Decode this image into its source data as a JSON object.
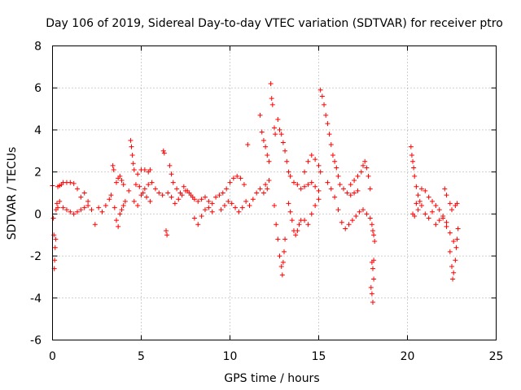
{
  "chart_data": {
    "type": "scatter",
    "title": "Day 106 of 2019, Sidereal Day-to-day VTEC variation (SDTVAR) for receiver ptro",
    "xlabel": "GPS time / hours",
    "ylabel": "SDTVAR / TECUs",
    "xlim": [
      0,
      25
    ],
    "ylim": [
      -6,
      8
    ],
    "xticks": [
      "0",
      "5",
      "10",
      "15",
      "20",
      "25"
    ],
    "yticks": [
      "-6",
      "-4",
      "-2",
      "0",
      "2",
      "4",
      "6",
      "8"
    ],
    "grid": true,
    "marker": "+",
    "color": "#ff0000",
    "series": [
      {
        "name": "SDTVAR",
        "points": [
          [
            0.0,
            1.35
          ],
          [
            0.05,
            -0.2
          ],
          [
            0.08,
            -1.0
          ],
          [
            0.1,
            -2.6
          ],
          [
            0.12,
            -2.2
          ],
          [
            0.15,
            -1.6
          ],
          [
            0.18,
            -1.2
          ],
          [
            0.2,
            0.2
          ],
          [
            0.25,
            0.5
          ],
          [
            0.3,
            1.3
          ],
          [
            0.4,
            1.35
          ],
          [
            0.5,
            1.4
          ],
          [
            0.6,
            1.5
          ],
          [
            0.8,
            1.5
          ],
          [
            1.0,
            1.5
          ],
          [
            1.2,
            1.45
          ],
          [
            1.4,
            1.2
          ],
          [
            0.3,
            0.3
          ],
          [
            0.4,
            0.6
          ],
          [
            0.6,
            0.3
          ],
          [
            0.8,
            0.2
          ],
          [
            1.0,
            0.1
          ],
          [
            1.2,
            0.0
          ],
          [
            1.4,
            0.1
          ],
          [
            1.6,
            0.2
          ],
          [
            1.8,
            0.3
          ],
          [
            2.0,
            0.4
          ],
          [
            1.6,
            0.8
          ],
          [
            1.8,
            1.0
          ],
          [
            2.0,
            0.6
          ],
          [
            2.2,
            0.2
          ],
          [
            2.4,
            -0.5
          ],
          [
            2.6,
            0.3
          ],
          [
            2.8,
            0.1
          ],
          [
            3.0,
            0.4
          ],
          [
            3.2,
            0.7
          ],
          [
            3.3,
            0.9
          ],
          [
            3.4,
            2.3
          ],
          [
            3.45,
            2.1
          ],
          [
            3.5,
            0.3
          ],
          [
            3.6,
            -0.3
          ],
          [
            3.7,
            -0.6
          ],
          [
            3.8,
            0.0
          ],
          [
            3.9,
            0.2
          ],
          [
            4.0,
            0.4
          ],
          [
            4.1,
            0.6
          ],
          [
            3.6,
            1.5
          ],
          [
            3.7,
            1.7
          ],
          [
            3.8,
            1.8
          ],
          [
            3.9,
            1.6
          ],
          [
            4.0,
            1.4
          ],
          [
            4.3,
            1.1
          ],
          [
            4.4,
            3.5
          ],
          [
            4.45,
            3.2
          ],
          [
            4.5,
            2.8
          ],
          [
            4.55,
            2.4
          ],
          [
            4.6,
            2.1
          ],
          [
            4.8,
            1.9
          ],
          [
            5.0,
            2.1
          ],
          [
            5.2,
            2.1
          ],
          [
            5.4,
            2.0
          ],
          [
            5.5,
            2.1
          ],
          [
            4.6,
            0.6
          ],
          [
            4.8,
            0.4
          ],
          [
            5.0,
            0.9
          ],
          [
            5.2,
            1.2
          ],
          [
            5.4,
            1.4
          ],
          [
            5.6,
            1.5
          ],
          [
            5.8,
            1.2
          ],
          [
            6.0,
            1.0
          ],
          [
            6.2,
            0.9
          ],
          [
            4.7,
            1.4
          ],
          [
            4.9,
            1.3
          ],
          [
            5.1,
            1.0
          ],
          [
            5.3,
            0.8
          ],
          [
            5.5,
            0.6
          ],
          [
            6.25,
            3.0
          ],
          [
            6.3,
            2.9
          ],
          [
            6.4,
            -0.8
          ],
          [
            6.45,
            -1.0
          ],
          [
            6.6,
            2.3
          ],
          [
            6.7,
            1.9
          ],
          [
            6.8,
            1.5
          ],
          [
            7.0,
            1.2
          ],
          [
            7.2,
            1.0
          ],
          [
            6.5,
            1.0
          ],
          [
            6.7,
            0.8
          ],
          [
            6.9,
            0.5
          ],
          [
            7.1,
            0.7
          ],
          [
            7.3,
            0.9
          ],
          [
            7.5,
            1.1
          ],
          [
            7.7,
            1.0
          ],
          [
            7.9,
            0.8
          ],
          [
            7.4,
            1.3
          ],
          [
            7.6,
            1.1
          ],
          [
            7.8,
            0.9
          ],
          [
            8.0,
            0.7
          ],
          [
            8.2,
            0.6
          ],
          [
            8.4,
            0.7
          ],
          [
            8.6,
            0.8
          ],
          [
            8.8,
            0.6
          ],
          [
            9.0,
            0.5
          ],
          [
            8.0,
            -0.2
          ],
          [
            8.2,
            -0.5
          ],
          [
            8.4,
            -0.1
          ],
          [
            8.6,
            0.2
          ],
          [
            8.8,
            0.3
          ],
          [
            9.0,
            0.1
          ],
          [
            9.2,
            0.8
          ],
          [
            9.4,
            0.9
          ],
          [
            9.6,
            1.0
          ],
          [
            9.8,
            1.2
          ],
          [
            10.0,
            1.5
          ],
          [
            10.2,
            1.7
          ],
          [
            10.4,
            1.8
          ],
          [
            10.6,
            1.7
          ],
          [
            10.8,
            1.4
          ],
          [
            9.5,
            0.2
          ],
          [
            9.7,
            0.4
          ],
          [
            9.9,
            0.6
          ],
          [
            10.1,
            0.5
          ],
          [
            10.3,
            0.3
          ],
          [
            10.5,
            0.1
          ],
          [
            10.7,
            0.3
          ],
          [
            10.9,
            0.6
          ],
          [
            11.0,
            3.3
          ],
          [
            11.1,
            0.4
          ],
          [
            11.3,
            0.7
          ],
          [
            11.5,
            1.0
          ],
          [
            11.7,
            1.2
          ],
          [
            11.9,
            1.0
          ],
          [
            12.0,
            1.4
          ],
          [
            11.7,
            4.7
          ],
          [
            11.8,
            3.9
          ],
          [
            11.9,
            3.5
          ],
          [
            12.0,
            3.2
          ],
          [
            12.1,
            2.8
          ],
          [
            12.2,
            2.5
          ],
          [
            12.1,
            1.2
          ],
          [
            12.2,
            1.6
          ],
          [
            12.3,
            6.2
          ],
          [
            12.35,
            5.5
          ],
          [
            12.4,
            5.2
          ],
          [
            12.5,
            4.1
          ],
          [
            12.55,
            3.8
          ],
          [
            12.5,
            0.4
          ],
          [
            12.6,
            -0.5
          ],
          [
            12.7,
            -1.2
          ],
          [
            12.8,
            -2.0
          ],
          [
            12.9,
            -2.5
          ],
          [
            12.95,
            -2.9
          ],
          [
            13.0,
            -2.3
          ],
          [
            13.05,
            -1.8
          ],
          [
            13.1,
            -1.2
          ],
          [
            12.7,
            4.5
          ],
          [
            12.8,
            4.0
          ],
          [
            12.9,
            3.8
          ],
          [
            13.0,
            3.4
          ],
          [
            13.1,
            3.0
          ],
          [
            13.2,
            2.5
          ],
          [
            13.3,
            2.0
          ],
          [
            13.4,
            1.8
          ],
          [
            13.3,
            0.5
          ],
          [
            13.4,
            0.1
          ],
          [
            13.5,
            -0.3
          ],
          [
            13.6,
            -0.8
          ],
          [
            13.7,
            -1.0
          ],
          [
            13.8,
            -0.8
          ],
          [
            13.9,
            -0.5
          ],
          [
            14.0,
            -0.3
          ],
          [
            13.6,
            1.5
          ],
          [
            13.8,
            1.4
          ],
          [
            14.0,
            1.2
          ],
          [
            14.2,
            1.3
          ],
          [
            14.4,
            1.4
          ],
          [
            14.6,
            1.5
          ],
          [
            14.8,
            1.3
          ],
          [
            15.0,
            1.1
          ],
          [
            14.2,
            2.0
          ],
          [
            14.4,
            2.5
          ],
          [
            14.6,
            2.8
          ],
          [
            14.8,
            2.6
          ],
          [
            15.0,
            2.3
          ],
          [
            15.1,
            2.0
          ],
          [
            14.2,
            -0.3
          ],
          [
            14.4,
            -0.5
          ],
          [
            14.6,
            0.0
          ],
          [
            14.8,
            0.4
          ],
          [
            15.0,
            0.7
          ],
          [
            15.1,
            5.9
          ],
          [
            15.2,
            5.6
          ],
          [
            15.3,
            5.2
          ],
          [
            15.4,
            4.7
          ],
          [
            15.5,
            4.3
          ],
          [
            15.6,
            3.8
          ],
          [
            15.7,
            3.3
          ],
          [
            15.8,
            2.8
          ],
          [
            15.9,
            2.5
          ],
          [
            16.0,
            2.2
          ],
          [
            16.1,
            1.8
          ],
          [
            16.2,
            1.4
          ],
          [
            16.4,
            1.2
          ],
          [
            16.6,
            1.0
          ],
          [
            16.8,
            0.9
          ],
          [
            17.0,
            1.0
          ],
          [
            17.2,
            1.1
          ],
          [
            15.5,
            1.5
          ],
          [
            15.7,
            1.2
          ],
          [
            15.9,
            0.8
          ],
          [
            16.1,
            0.2
          ],
          [
            16.3,
            -0.4
          ],
          [
            16.5,
            -0.7
          ],
          [
            16.7,
            -0.5
          ],
          [
            16.9,
            -0.3
          ],
          [
            17.1,
            -0.1
          ],
          [
            17.3,
            0.1
          ],
          [
            17.5,
            0.2
          ],
          [
            17.7,
            0.0
          ],
          [
            16.8,
            1.4
          ],
          [
            17.0,
            1.6
          ],
          [
            17.2,
            1.8
          ],
          [
            17.4,
            2.0
          ],
          [
            17.5,
            2.3
          ],
          [
            17.6,
            2.5
          ],
          [
            17.7,
            2.2
          ],
          [
            17.8,
            1.8
          ],
          [
            17.9,
            1.2
          ],
          [
            17.9,
            -0.2
          ],
          [
            18.0,
            -0.5
          ],
          [
            18.05,
            -0.8
          ],
          [
            18.1,
            -1.0
          ],
          [
            18.15,
            -1.3
          ],
          [
            18.0,
            -2.3
          ],
          [
            18.05,
            -2.6
          ],
          [
            18.1,
            -3.1
          ],
          [
            18.0,
            -3.8
          ],
          [
            18.05,
            -4.2
          ],
          [
            17.95,
            -3.5
          ],
          [
            18.1,
            -2.2
          ],
          [
            20.2,
            3.2
          ],
          [
            20.25,
            2.8
          ],
          [
            20.3,
            2.5
          ],
          [
            20.35,
            2.2
          ],
          [
            20.4,
            1.8
          ],
          [
            20.5,
            1.3
          ],
          [
            20.6,
            0.9
          ],
          [
            20.7,
            0.6
          ],
          [
            20.3,
            0.0
          ],
          [
            20.4,
            -0.1
          ],
          [
            20.5,
            0.5
          ],
          [
            20.6,
            0.2
          ],
          [
            20.8,
            0.4
          ],
          [
            21.0,
            0.0
          ],
          [
            21.2,
            -0.2
          ],
          [
            21.4,
            0.1
          ],
          [
            20.8,
            1.2
          ],
          [
            21.0,
            1.1
          ],
          [
            21.2,
            0.8
          ],
          [
            21.4,
            0.6
          ],
          [
            21.6,
            0.4
          ],
          [
            21.8,
            0.2
          ],
          [
            22.0,
            -0.2
          ],
          [
            22.2,
            -0.6
          ],
          [
            21.6,
            -0.5
          ],
          [
            21.8,
            -0.3
          ],
          [
            22.0,
            -0.1
          ],
          [
            22.2,
            -0.4
          ],
          [
            22.4,
            -0.9
          ],
          [
            22.6,
            -1.3
          ],
          [
            22.1,
            1.2
          ],
          [
            22.2,
            0.9
          ],
          [
            22.4,
            0.5
          ],
          [
            22.5,
            0.2
          ],
          [
            22.7,
            0.4
          ],
          [
            22.8,
            0.5
          ],
          [
            22.4,
            -1.8
          ],
          [
            22.5,
            -2.5
          ],
          [
            22.55,
            -3.1
          ],
          [
            22.6,
            -2.8
          ],
          [
            22.7,
            -2.2
          ],
          [
            22.75,
            -1.6
          ],
          [
            22.8,
            -1.2
          ],
          [
            22.85,
            -0.7
          ]
        ]
      }
    ]
  }
}
